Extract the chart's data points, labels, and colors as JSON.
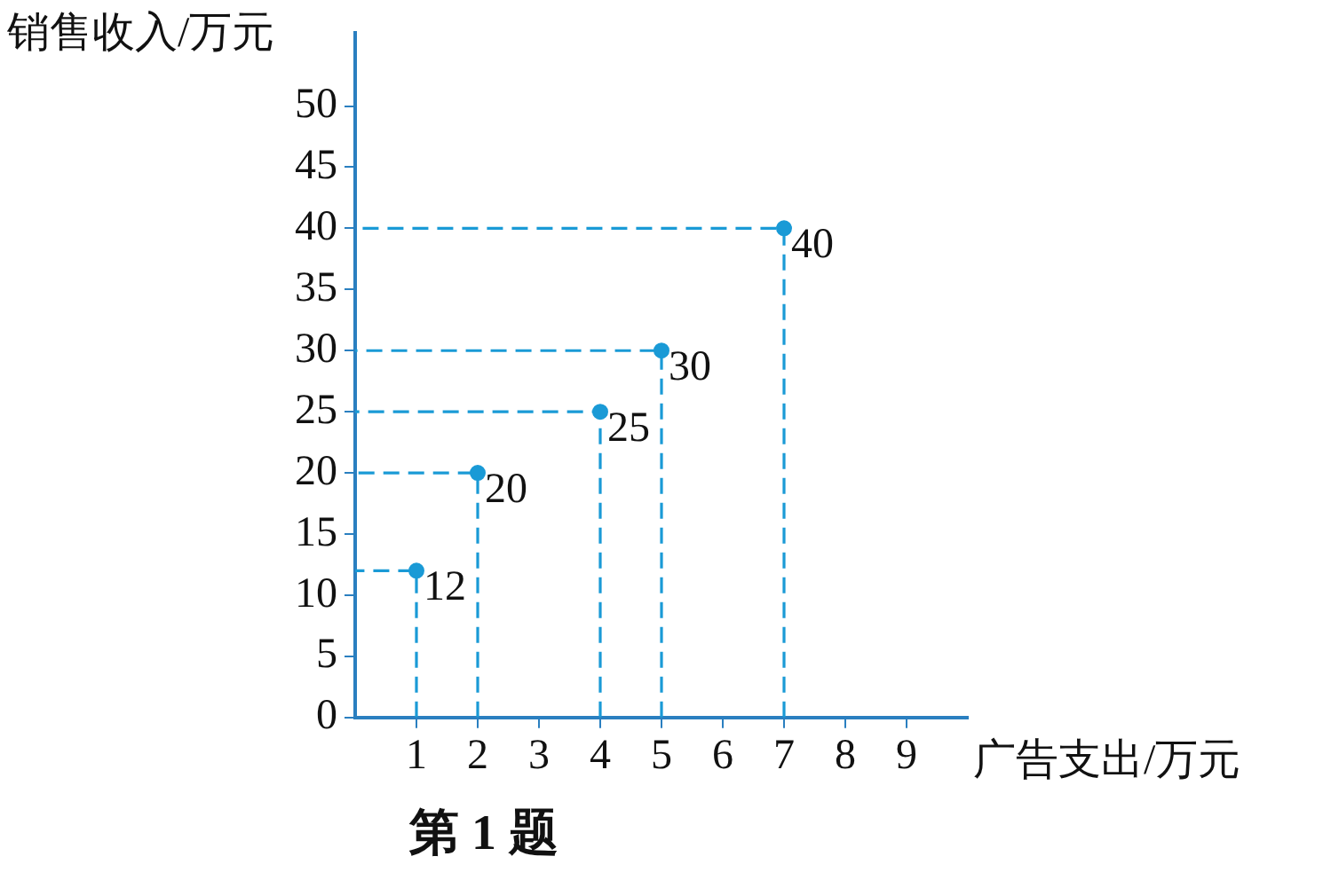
{
  "chart_data": {
    "type": "scatter",
    "title": "第 1 题",
    "xlabel": "广告支出/万元",
    "ylabel": "销售收入/万元",
    "x": [
      1,
      2,
      4,
      5,
      7
    ],
    "series": [
      {
        "color": "#1a9ad6",
        "marker": "circle",
        "values": [
          12,
          20,
          25,
          30,
          40
        ],
        "value_labels": [
          "12",
          "20",
          "25",
          "30",
          "40"
        ]
      },
      {
        "type": "line",
        "color": "#1a9ad6",
        "line_style": "dashed",
        "x": [
          1,
          1,
          0
        ],
        "values": [
          0,
          12,
          12
        ]
      },
      {
        "type": "line",
        "color": "#1a9ad6",
        "line_style": "dashed",
        "x": [
          2,
          2,
          0
        ],
        "values": [
          0,
          20,
          20
        ]
      },
      {
        "type": "line",
        "color": "#1a9ad6",
        "line_style": "dashed",
        "x": [
          4,
          4,
          0
        ],
        "values": [
          0,
          25,
          25
        ]
      },
      {
        "type": "line",
        "color": "#1a9ad6",
        "line_style": "dashed",
        "x": [
          5,
          5,
          0
        ],
        "values": [
          0,
          30,
          30
        ]
      },
      {
        "type": "line",
        "color": "#1a9ad6",
        "line_style": "dashed",
        "x": [
          7,
          7,
          0
        ],
        "values": [
          0,
          40,
          40
        ]
      }
    ],
    "xlim": [
      0,
      10
    ],
    "xticks": [
      1,
      2,
      3,
      4,
      5,
      6,
      7,
      8,
      9
    ],
    "ylim": [
      0,
      56
    ],
    "yticks": [
      0,
      5,
      10,
      15,
      20,
      25,
      30,
      35,
      40,
      45,
      50
    ],
    "grid": false,
    "legend": false
  }
}
